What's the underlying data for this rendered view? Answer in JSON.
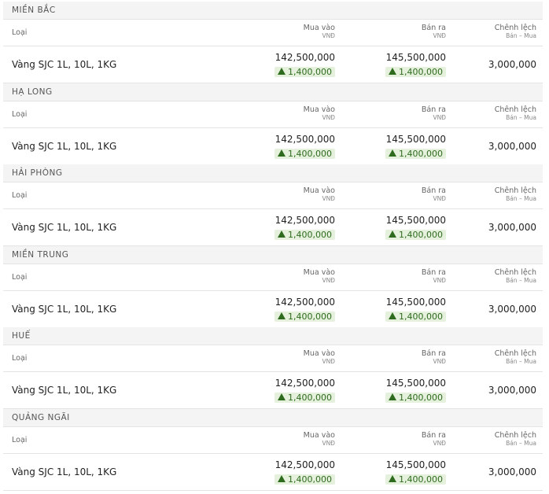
{
  "sections": [
    {
      "name": "MIỀN BẮC",
      "header": {
        "type": "Loại",
        "buy": "Mua vào",
        "buy_unit": "VNĐ",
        "sell": "Bán ra",
        "sell_unit": "VNĐ",
        "diff": "Chênh lệch",
        "diff_unit": "Bán – Mua"
      },
      "row": {
        "name": "Vàng SJC 1L, 10L, 1KG",
        "buy": "142,500,000",
        "buy_change": "1,400,000",
        "sell": "145,500,000",
        "sell_change": "1,400,000",
        "diff": "3,000,000"
      }
    },
    {
      "name": "HẠ LONG",
      "header": {
        "type": "Loại",
        "buy": "Mua vào",
        "buy_unit": "VNĐ",
        "sell": "Bán ra",
        "sell_unit": "VNĐ",
        "diff": "Chênh lệch",
        "diff_unit": "Bán – Mua"
      },
      "row": {
        "name": "Vàng SJC 1L, 10L, 1KG",
        "buy": "142,500,000",
        "buy_change": "1,400,000",
        "sell": "145,500,000",
        "sell_change": "1,400,000",
        "diff": "3,000,000"
      }
    },
    {
      "name": "HẢI PHÒNG",
      "header": {
        "type": "Loại",
        "buy": "Mua vào",
        "buy_unit": "VNĐ",
        "sell": "Bán ra",
        "sell_unit": "VNĐ",
        "diff": "Chênh lệch",
        "diff_unit": "Bán – Mua"
      },
      "row": {
        "name": "Vàng SJC 1L, 10L, 1KG",
        "buy": "142,500,000",
        "buy_change": "1,400,000",
        "sell": "145,500,000",
        "sell_change": "1,400,000",
        "diff": "3,000,000"
      }
    },
    {
      "name": "MIỀN TRUNG",
      "header": {
        "type": "Loại",
        "buy": "Mua vào",
        "buy_unit": "VNĐ",
        "sell": "Bán ra",
        "sell_unit": "VNĐ",
        "diff": "Chênh lệch",
        "diff_unit": "Bán – Mua"
      },
      "row": {
        "name": "Vàng SJC 1L, 10L, 1KG",
        "buy": "142,500,000",
        "buy_change": "1,400,000",
        "sell": "145,500,000",
        "sell_change": "1,400,000",
        "diff": "3,000,000"
      }
    },
    {
      "name": "HUẾ",
      "header": {
        "type": "Loại",
        "buy": "Mua vào",
        "buy_unit": "VNĐ",
        "sell": "Bán ra",
        "sell_unit": "VNĐ",
        "diff": "Chênh lệch",
        "diff_unit": "Bán – Mua"
      },
      "row": {
        "name": "Vàng SJC 1L, 10L, 1KG",
        "buy": "142,500,000",
        "buy_change": "1,400,000",
        "sell": "145,500,000",
        "sell_change": "1,400,000",
        "diff": "3,000,000"
      }
    },
    {
      "name": "QUẢNG NGÃI",
      "header": {
        "type": "Loại",
        "buy": "Mua vào",
        "buy_unit": "VNĐ",
        "sell": "Bán ra",
        "sell_unit": "VNĐ",
        "diff": "Chênh lệch",
        "diff_unit": "Bán – Mua"
      },
      "row": {
        "name": "Vàng SJC 1L, 10L, 1KG",
        "buy": "142,500,000",
        "buy_change": "1,400,000",
        "sell": "145,500,000",
        "sell_change": "1,400,000",
        "diff": "3,000,000"
      }
    }
  ]
}
